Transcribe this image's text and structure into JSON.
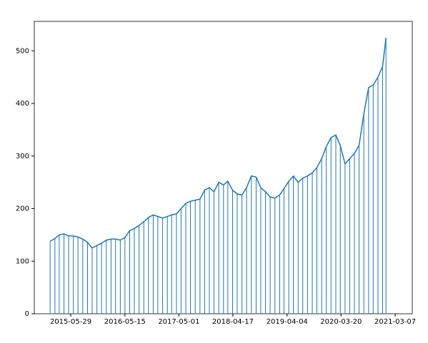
{
  "chart_data": {
    "type": "line",
    "drop_lines": true,
    "grid": false,
    "color": "#1f77b4",
    "x": [
      "2015-01-15",
      "2015-02-15",
      "2015-03-15",
      "2015-04-15",
      "2015-05-15",
      "2015-06-15",
      "2015-07-15",
      "2015-08-15",
      "2015-09-15",
      "2015-10-15",
      "2015-11-15",
      "2015-12-15",
      "2016-01-15",
      "2016-02-15",
      "2016-03-15",
      "2016-04-15",
      "2016-05-15",
      "2016-06-15",
      "2016-07-15",
      "2016-08-15",
      "2016-09-15",
      "2016-10-15",
      "2016-11-15",
      "2016-12-15",
      "2017-01-15",
      "2017-02-15",
      "2017-03-15",
      "2017-04-15",
      "2017-05-15",
      "2017-06-15",
      "2017-07-15",
      "2017-08-15",
      "2017-09-15",
      "2017-10-15",
      "2017-11-15",
      "2017-12-15",
      "2018-01-15",
      "2018-02-15",
      "2018-03-15",
      "2018-04-15",
      "2018-05-15",
      "2018-06-15",
      "2018-07-15",
      "2018-08-15",
      "2018-09-15",
      "2018-10-15",
      "2018-11-15",
      "2018-12-15",
      "2019-01-15",
      "2019-02-15",
      "2019-03-15",
      "2019-04-15",
      "2019-05-15",
      "2019-06-15",
      "2019-07-15",
      "2019-08-15",
      "2019-09-15",
      "2019-10-15",
      "2019-11-15",
      "2019-12-15",
      "2020-01-15",
      "2020-02-15",
      "2020-03-15",
      "2020-04-15",
      "2020-05-15",
      "2020-06-15",
      "2020-07-15",
      "2020-08-15",
      "2020-09-15",
      "2020-10-15",
      "2020-11-15",
      "2020-12-15",
      "2021-01-06"
    ],
    "values": [
      138,
      143,
      150,
      152,
      148,
      148,
      146,
      142,
      136,
      125,
      130,
      134,
      140,
      142,
      142,
      140,
      145,
      158,
      162,
      168,
      175,
      183,
      188,
      185,
      182,
      185,
      188,
      190,
      200,
      210,
      214,
      216,
      218,
      235,
      240,
      232,
      250,
      245,
      252,
      235,
      228,
      226,
      240,
      262,
      260,
      240,
      232,
      222,
      220,
      226,
      238,
      252,
      262,
      250,
      258,
      262,
      268,
      278,
      295,
      318,
      335,
      340,
      320,
      285,
      295,
      305,
      320,
      380,
      430,
      435,
      450,
      470,
      525
    ],
    "xlim": [
      "2014-10-04",
      "2021-06-26"
    ],
    "xticks": [
      "2015-05-29",
      "2016-05-15",
      "2017-05-01",
      "2018-04-17",
      "2019-04-04",
      "2020-03-20",
      "2021-03-07"
    ],
    "ylim": [
      0,
      556
    ],
    "yticks": [
      0,
      100,
      200,
      300,
      400,
      500
    ]
  }
}
